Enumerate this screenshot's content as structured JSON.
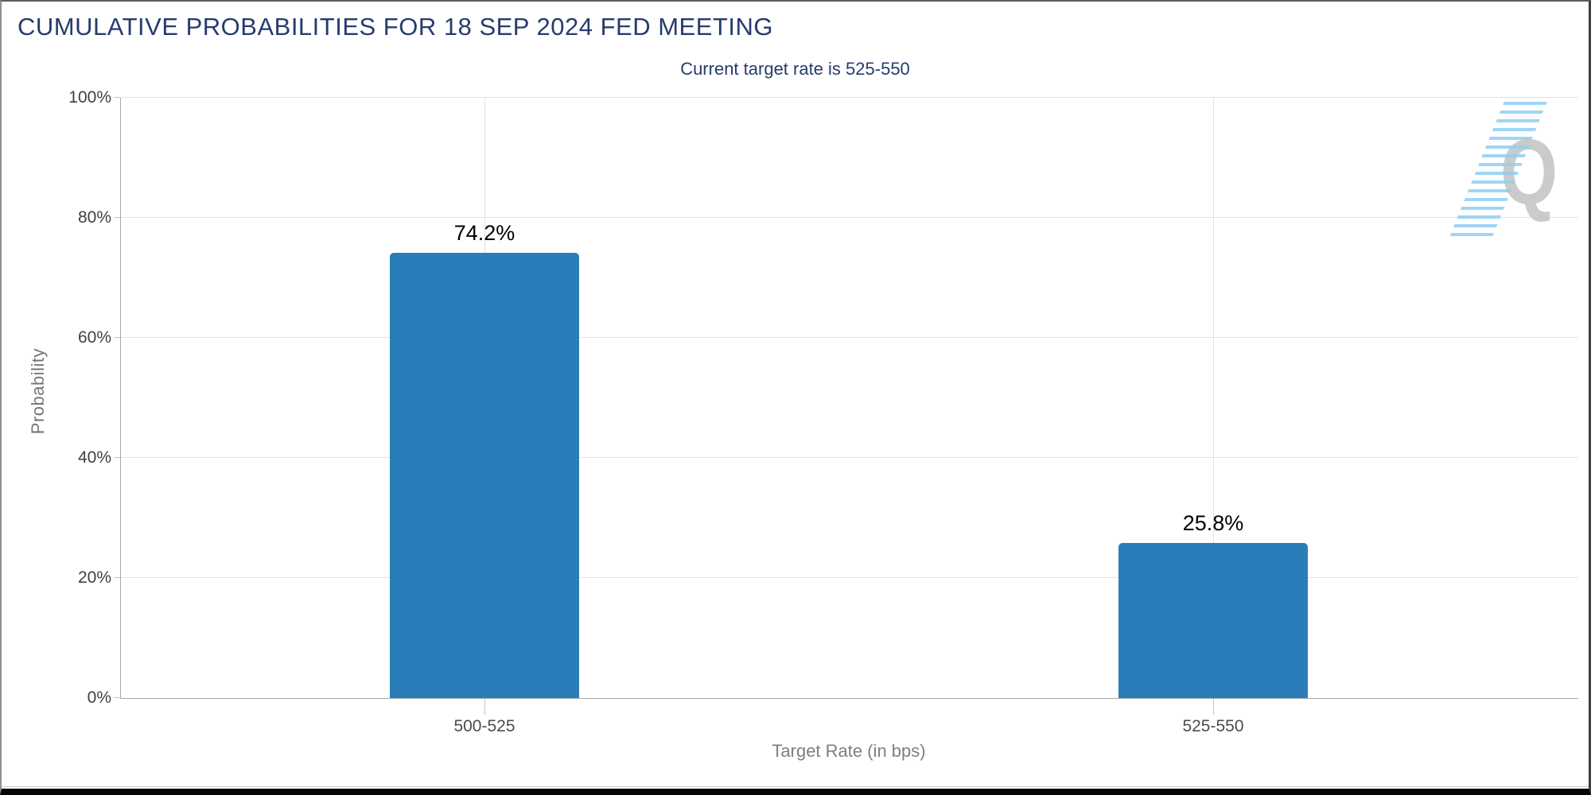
{
  "header": {
    "title": "CUMULATIVE PROBABILITIES FOR 18 SEP 2024 FED MEETING",
    "subtitle": "Current target rate is 525-550"
  },
  "watermark": {
    "letter": "Q"
  },
  "chart_data": {
    "type": "bar",
    "title": "CUMULATIVE PROBABILITIES FOR 18 SEP 2024 FED MEETING",
    "subtitle": "Current target rate is 525-550",
    "categories": [
      "500-525",
      "525-550"
    ],
    "values": [
      74.2,
      25.8
    ],
    "value_labels": [
      "74.2%",
      "25.8%"
    ],
    "xlabel": "Target Rate (in bps)",
    "ylabel": "Probability",
    "ylim": [
      0,
      100
    ],
    "yticks": [
      0,
      20,
      40,
      60,
      80,
      100
    ],
    "ytick_labels": [
      "0%",
      "20%",
      "40%",
      "60%",
      "80%",
      "100%"
    ],
    "grid": true,
    "legend_position": "none",
    "bar_color": "#2a7db8"
  },
  "colors": {
    "title": "#263c6e",
    "subtitle": "#263c6e",
    "bar": "#2a7db8",
    "gridline": "#e2e2e2",
    "axis_line": "#a6a6a6",
    "tick_label": "#3f3f3f",
    "category_label": "#4d4d4d",
    "axis_title": "#7f7f7f",
    "value_label": "#000000",
    "watermark_q": "#c9c9c9",
    "watermark_stripes": "#8ecef5"
  }
}
